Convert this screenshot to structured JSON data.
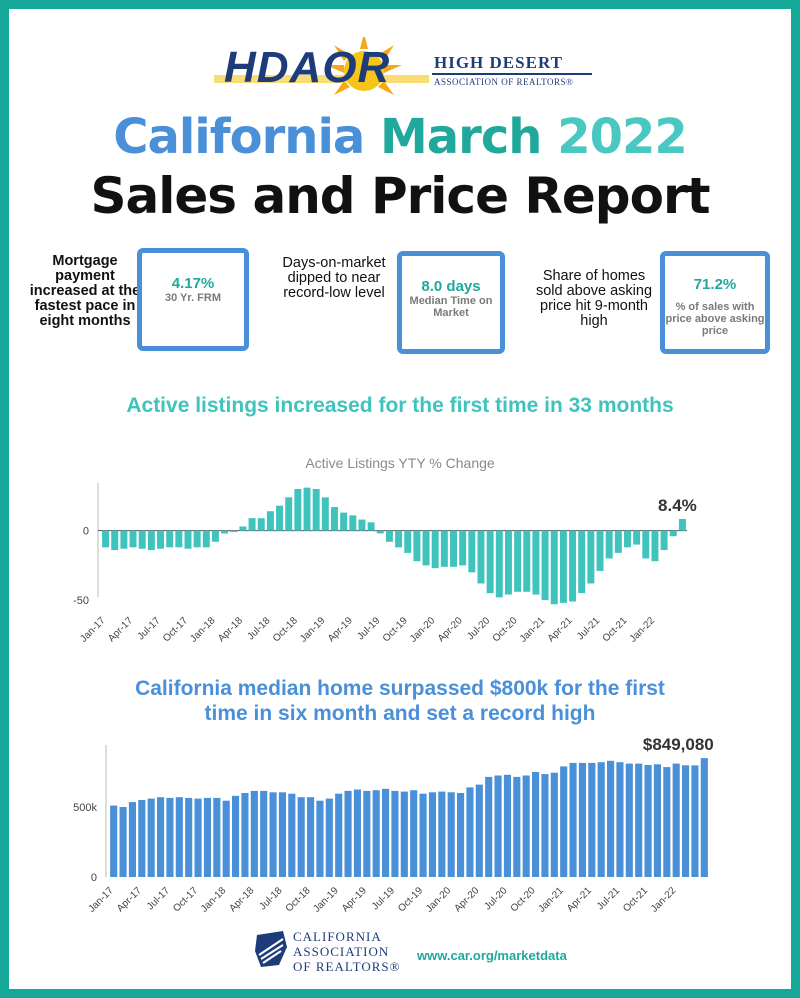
{
  "logo": {
    "main": "HDAOR",
    "line1": "HIGH DESERT",
    "line2": "ASSOCIATION OF REALTORS®"
  },
  "title": {
    "part1": "California",
    "part2": "March",
    "part3": "2022",
    "line2": "Sales and Price Report"
  },
  "stats": [
    {
      "desc": "Mortgage payment increased at the fastest pace in eight months",
      "value": "4.17%",
      "label": "30 Yr. FRM"
    },
    {
      "desc": "Days-on-market dipped to near record-low level",
      "value": "8.0 days",
      "label": "Median Time on Market"
    },
    {
      "desc": "Share of homes sold above asking price hit 9-month high",
      "value": "71.2%",
      "label": "% of sales with price above asking price"
    }
  ],
  "section1": {
    "heading": "Active listings increased for the first time in 33 months"
  },
  "section2": {
    "heading": "California median home surpassed $800k for the first time in six month and set a record high"
  },
  "chart_data": [
    {
      "type": "bar",
      "title": "Active Listings YTY % Change",
      "color": "#3fc3bd",
      "ylim": [
        -60,
        30
      ],
      "yticks": [
        "0",
        "-50"
      ],
      "ytick_values": [
        0,
        -50
      ],
      "xticks": [
        "Jan-17",
        "Apr-17",
        "Jul-17",
        "Oct-17",
        "Jan-18",
        "Apr-18",
        "Jul-18",
        "Oct-18",
        "Jan-19",
        "Apr-19",
        "Jul-19",
        "Oct-19",
        "Jan-20",
        "Apr-20",
        "Jul-20",
        "Oct-20",
        "Jan-21",
        "Apr-21",
        "Jul-21",
        "Oct-21",
        "Jan-22"
      ],
      "callout": "8.4%",
      "start_month": "Jan-17",
      "values": [
        -12,
        -14,
        -13,
        -12,
        -13,
        -14,
        -13,
        -12,
        -12,
        -13,
        -12,
        -12,
        -8,
        -2,
        -1,
        3,
        9,
        9,
        14,
        18,
        24,
        30,
        31,
        30,
        24,
        17,
        13,
        11,
        8,
        6,
        -2,
        -8,
        -12,
        -16,
        -22,
        -25,
        -27,
        -26,
        -26,
        -25,
        -30,
        -38,
        -45,
        -48,
        -46,
        -44,
        -44,
        -46,
        -50,
        -53,
        -52,
        -51,
        -45,
        -38,
        -29,
        -20,
        -16,
        -12,
        -10,
        -20,
        -22,
        -14,
        -4,
        8.4
      ],
      "grid": false
    },
    {
      "type": "bar",
      "title": "",
      "color": "#4a90d9",
      "ylim": [
        0,
        900000
      ],
      "yticks": [
        "500k",
        "0"
      ],
      "ytick_values": [
        500000,
        0
      ],
      "xticks": [
        "Jan-17",
        "Apr-17",
        "Jul-17",
        "Oct-17",
        "Jan-18",
        "Apr-18",
        "Jul-18",
        "Oct-18",
        "Jan-19",
        "Apr-19",
        "Jul-19",
        "Oct-19",
        "Jan-20",
        "Apr-20",
        "Jul-20",
        "Oct-20",
        "Jan-21",
        "Apr-21",
        "Jul-21",
        "Oct-21",
        "Jan-22"
      ],
      "callout": "$849,080",
      "start_month": "Jan-17",
      "values": [
        510000,
        500000,
        535000,
        550000,
        560000,
        570000,
        565000,
        570000,
        565000,
        560000,
        565000,
        565000,
        545000,
        580000,
        600000,
        615000,
        615000,
        605000,
        605000,
        595000,
        570000,
        570000,
        545000,
        560000,
        595000,
        615000,
        625000,
        615000,
        620000,
        630000,
        615000,
        610000,
        620000,
        595000,
        605000,
        610000,
        605000,
        600000,
        640000,
        660000,
        715000,
        725000,
        730000,
        715000,
        725000,
        750000,
        735000,
        745000,
        790000,
        815000,
        815000,
        815000,
        820000,
        830000,
        820000,
        810000,
        810000,
        800000,
        805000,
        785000,
        810000,
        798000,
        797000,
        849080
      ],
      "grid": false
    }
  ],
  "footer": {
    "org_line1": "CALIFORNIA",
    "org_line2": "ASSOCIATION",
    "org_line3": "OF REALTORS®",
    "link": "www.car.org/marketdata"
  }
}
